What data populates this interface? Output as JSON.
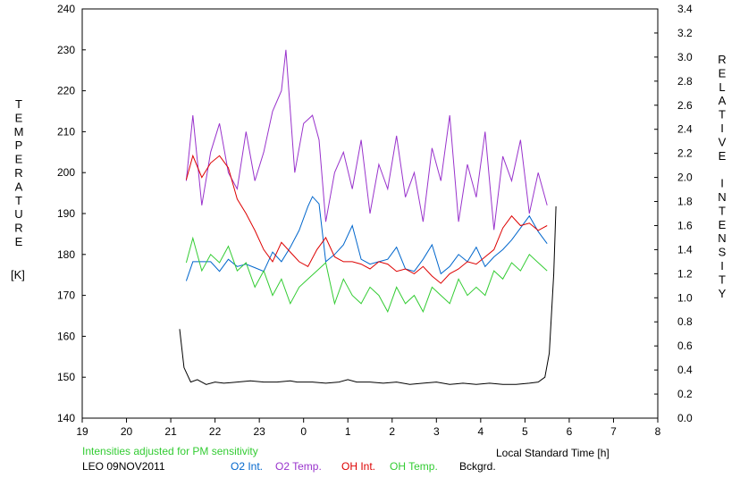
{
  "chart_data": {
    "type": "line",
    "title": "",
    "xlabel": "Local Standard Time [h]",
    "ylabel_left": "TEMPERATURE",
    "ylabel_left_unit": "[K]",
    "ylabel_right": "RELATIVE INTENSITY",
    "x_tick_labels": [
      "19",
      "20",
      "21",
      "22",
      "23",
      "0",
      "1",
      "2",
      "3",
      "4",
      "5",
      "6",
      "7",
      "8"
    ],
    "xlim": [
      19,
      32
    ],
    "ylim_left": [
      140,
      240
    ],
    "ylim_right": [
      0.0,
      3.4
    ],
    "y_left_ticks": [
      140,
      150,
      160,
      170,
      180,
      190,
      200,
      210,
      220,
      230,
      240
    ],
    "y_right_ticks": [
      "0.0",
      "0.2",
      "0.4",
      "0.6",
      "0.8",
      "1.0",
      "1.2",
      "1.4",
      "1.6",
      "1.8",
      "2.0",
      "2.2",
      "2.4",
      "2.6",
      "2.8",
      "3.0",
      "3.2",
      "3.4"
    ],
    "grid": false,
    "annotation": "Intensities adjusted for PM sensitivity",
    "station_date": "LEO 09NOV2011",
    "series": [
      {
        "name": "O2 Int.",
        "axis": "right",
        "color": "#0066cc",
        "x": [
          21.35,
          21.5,
          21.7,
          21.9,
          22.1,
          22.3,
          22.5,
          22.7,
          22.9,
          23.1,
          23.3,
          23.5,
          23.7,
          23.9,
          24.1,
          24.2,
          24.35,
          24.5,
          24.7,
          24.9,
          25.1,
          25.3,
          25.5,
          25.7,
          25.9,
          26.1,
          26.3,
          26.5,
          26.7,
          26.9,
          27.1,
          27.3,
          27.5,
          27.7,
          27.9,
          28.1,
          28.3,
          28.5,
          28.7,
          28.9,
          29.1,
          29.3,
          29.5
        ],
        "y": [
          1.14,
          1.3,
          1.3,
          1.3,
          1.22,
          1.32,
          1.26,
          1.28,
          1.25,
          1.22,
          1.38,
          1.3,
          1.42,
          1.56,
          1.76,
          1.84,
          1.78,
          1.3,
          1.36,
          1.44,
          1.6,
          1.32,
          1.28,
          1.3,
          1.32,
          1.42,
          1.24,
          1.22,
          1.32,
          1.44,
          1.2,
          1.26,
          1.36,
          1.3,
          1.42,
          1.26,
          1.34,
          1.4,
          1.48,
          1.58,
          1.68,
          1.55,
          1.45
        ]
      },
      {
        "name": "O2 Temp.",
        "axis": "left",
        "color": "#9933cc",
        "x": [
          21.35,
          21.5,
          21.7,
          21.9,
          22.1,
          22.3,
          22.5,
          22.7,
          22.9,
          23.1,
          23.3,
          23.5,
          23.6,
          23.8,
          24.0,
          24.2,
          24.35,
          24.5,
          24.7,
          24.9,
          25.1,
          25.3,
          25.5,
          25.7,
          25.9,
          26.1,
          26.3,
          26.5,
          26.7,
          26.9,
          27.1,
          27.3,
          27.5,
          27.7,
          27.9,
          28.1,
          28.3,
          28.5,
          28.7,
          28.9,
          29.1,
          29.3,
          29.5
        ],
        "y": [
          198,
          214,
          192,
          205,
          212,
          200,
          196,
          210,
          198,
          205,
          215,
          220,
          230,
          200,
          212,
          214,
          208,
          188,
          200,
          205,
          196,
          208,
          190,
          202,
          196,
          209,
          194,
          200,
          188,
          206,
          198,
          214,
          188,
          202,
          194,
          210,
          186,
          204,
          198,
          208,
          190,
          200,
          192
        ]
      },
      {
        "name": "OH Int.",
        "axis": "right",
        "color": "#dd0000",
        "x": [
          21.35,
          21.5,
          21.7,
          21.9,
          22.1,
          22.3,
          22.5,
          22.7,
          22.9,
          23.1,
          23.3,
          23.5,
          23.7,
          23.9,
          24.1,
          24.3,
          24.5,
          24.7,
          24.9,
          25.1,
          25.3,
          25.5,
          25.7,
          25.9,
          26.1,
          26.3,
          26.5,
          26.7,
          26.9,
          27.1,
          27.3,
          27.5,
          27.7,
          27.9,
          28.1,
          28.3,
          28.5,
          28.7,
          28.9,
          29.1,
          29.3,
          29.5
        ],
        "y": [
          1.98,
          2.18,
          2.0,
          2.12,
          2.18,
          2.08,
          1.82,
          1.7,
          1.56,
          1.4,
          1.3,
          1.46,
          1.38,
          1.3,
          1.26,
          1.4,
          1.5,
          1.34,
          1.3,
          1.3,
          1.28,
          1.24,
          1.3,
          1.28,
          1.22,
          1.24,
          1.2,
          1.26,
          1.18,
          1.12,
          1.2,
          1.24,
          1.3,
          1.28,
          1.34,
          1.4,
          1.58,
          1.68,
          1.6,
          1.62,
          1.56,
          1.6
        ]
      },
      {
        "name": "OH Temp.",
        "axis": "left",
        "color": "#33cc33",
        "x": [
          21.35,
          21.5,
          21.7,
          21.9,
          22.1,
          22.3,
          22.5,
          22.7,
          22.9,
          23.1,
          23.3,
          23.5,
          23.7,
          23.9,
          24.1,
          24.3,
          24.5,
          24.7,
          24.9,
          25.1,
          25.3,
          25.5,
          25.7,
          25.9,
          26.1,
          26.3,
          26.5,
          26.7,
          26.9,
          27.1,
          27.3,
          27.5,
          27.7,
          27.9,
          28.1,
          28.3,
          28.5,
          28.7,
          28.9,
          29.1,
          29.3,
          29.5
        ],
        "y": [
          178,
          184,
          176,
          180,
          178,
          182,
          176,
          178,
          172,
          176,
          170,
          174,
          168,
          172,
          174,
          176,
          178,
          168,
          174,
          170,
          168,
          172,
          170,
          166,
          172,
          168,
          170,
          166,
          172,
          170,
          168,
          174,
          170,
          172,
          170,
          176,
          174,
          178,
          176,
          180,
          178,
          176
        ]
      },
      {
        "name": "Bckgrd.",
        "axis": "right",
        "color": "#000000",
        "x": [
          21.2,
          21.3,
          21.45,
          21.6,
          21.8,
          22.0,
          22.2,
          22.5,
          22.8,
          23.1,
          23.4,
          23.7,
          23.85,
          24.0,
          24.2,
          24.5,
          24.8,
          25.0,
          25.2,
          25.5,
          25.8,
          26.1,
          26.4,
          26.7,
          27.0,
          27.3,
          27.6,
          27.9,
          28.2,
          28.5,
          28.8,
          29.1,
          29.3,
          29.45,
          29.55,
          29.65,
          29.7
        ],
        "y": [
          0.74,
          0.42,
          0.3,
          0.32,
          0.28,
          0.3,
          0.29,
          0.3,
          0.31,
          0.3,
          0.3,
          0.31,
          0.3,
          0.3,
          0.3,
          0.29,
          0.3,
          0.32,
          0.3,
          0.3,
          0.29,
          0.3,
          0.28,
          0.29,
          0.3,
          0.28,
          0.29,
          0.28,
          0.29,
          0.28,
          0.28,
          0.29,
          0.3,
          0.34,
          0.54,
          1.2,
          1.76
        ]
      }
    ]
  }
}
